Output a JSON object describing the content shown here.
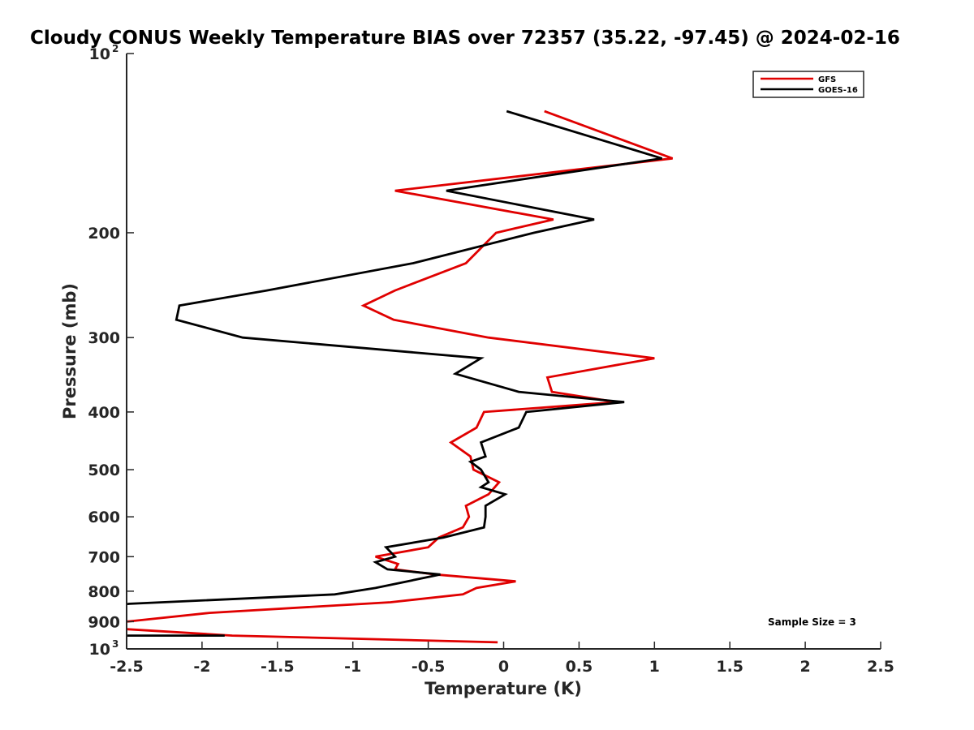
{
  "chart_data": {
    "type": "line",
    "title": "Cloudy CONUS Weekly Temperature BIAS over 72357 (35.22, -97.45) @ 2024-02-16",
    "xlabel": "Temperature (K)",
    "ylabel": "Pressure (mb)",
    "xlim": [
      -2.5,
      2.5
    ],
    "ylim": [
      100,
      1000
    ],
    "y_scale": "log",
    "y_reversed": true,
    "grid": false,
    "legend_position": "top-right",
    "x_ticks": [
      "-2.5",
      "-2",
      "-1.5",
      "-1",
      "-0.5",
      "0",
      "0.5",
      "1",
      "1.5",
      "2",
      "2.5"
    ],
    "y_ticks": [
      {
        "label": "10",
        "exp": "2"
      },
      {
        "label": "200"
      },
      {
        "label": "300"
      },
      {
        "label": "400"
      },
      {
        "label": "500"
      },
      {
        "label": "600"
      },
      {
        "label": "700"
      },
      {
        "label": "800"
      },
      {
        "label": "900"
      },
      {
        "label": "10",
        "exp": "3"
      }
    ],
    "series": [
      {
        "name": "GFS",
        "color": "#e00000",
        "points": [
          [
            0.27,
            125
          ],
          [
            1.12,
            150
          ],
          [
            -0.72,
            170
          ],
          [
            0.33,
            190
          ],
          [
            -0.05,
            200
          ],
          [
            -0.25,
            225
          ],
          [
            -0.72,
            250
          ],
          [
            -0.93,
            265
          ],
          [
            -0.73,
            280
          ],
          [
            -0.1,
            300
          ],
          [
            1.0,
            325
          ],
          [
            0.29,
            350
          ],
          [
            0.32,
            370
          ],
          [
            0.75,
            385
          ],
          [
            -0.13,
            400
          ],
          [
            -0.18,
            425
          ],
          [
            -0.35,
            450
          ],
          [
            -0.22,
            475
          ],
          [
            -0.2,
            500
          ],
          [
            -0.03,
            525
          ],
          [
            -0.1,
            550
          ],
          [
            -0.25,
            575
          ],
          [
            -0.23,
            600
          ],
          [
            -0.27,
            625
          ],
          [
            -0.43,
            650
          ],
          [
            -0.5,
            675
          ],
          [
            -0.85,
            700
          ],
          [
            -0.7,
            720
          ],
          [
            -0.72,
            735
          ],
          [
            -0.45,
            750
          ],
          [
            0.08,
            770
          ],
          [
            -0.18,
            790
          ],
          [
            -0.27,
            810
          ],
          [
            -0.75,
            835
          ],
          [
            -1.95,
            870
          ],
          [
            -2.5,
            900
          ],
          [
            -2.55,
            925
          ],
          [
            -1.8,
            950
          ],
          [
            -0.04,
            975
          ]
        ]
      },
      {
        "name": "GOES-16",
        "color": "#000000",
        "points": [
          [
            0.02,
            125
          ],
          [
            1.05,
            150
          ],
          [
            -0.38,
            170
          ],
          [
            0.6,
            190
          ],
          [
            0.2,
            200
          ],
          [
            -0.6,
            225
          ],
          [
            -1.57,
            250
          ],
          [
            -2.15,
            265
          ],
          [
            -2.17,
            280
          ],
          [
            -1.73,
            300
          ],
          [
            -0.15,
            325
          ],
          [
            -0.32,
            345
          ],
          [
            0.1,
            370
          ],
          [
            0.8,
            385
          ],
          [
            0.15,
            400
          ],
          [
            0.1,
            425
          ],
          [
            -0.15,
            450
          ],
          [
            -0.12,
            475
          ],
          [
            -0.22,
            485
          ],
          [
            -0.15,
            500
          ],
          [
            -0.1,
            525
          ],
          [
            -0.15,
            535
          ],
          [
            0.01,
            550
          ],
          [
            -0.12,
            575
          ],
          [
            -0.12,
            600
          ],
          [
            -0.13,
            625
          ],
          [
            -0.4,
            650
          ],
          [
            -0.78,
            675
          ],
          [
            -0.72,
            700
          ],
          [
            -0.85,
            715
          ],
          [
            -0.77,
            735
          ],
          [
            -0.42,
            750
          ],
          [
            -0.85,
            790
          ],
          [
            -1.12,
            810
          ],
          [
            -2.48,
            840
          ],
          [
            -2.7,
            850
          ],
          [
            -2.6,
            950
          ],
          [
            -1.85,
            950
          ]
        ]
      }
    ],
    "annotation": "Sample Size = 3"
  }
}
